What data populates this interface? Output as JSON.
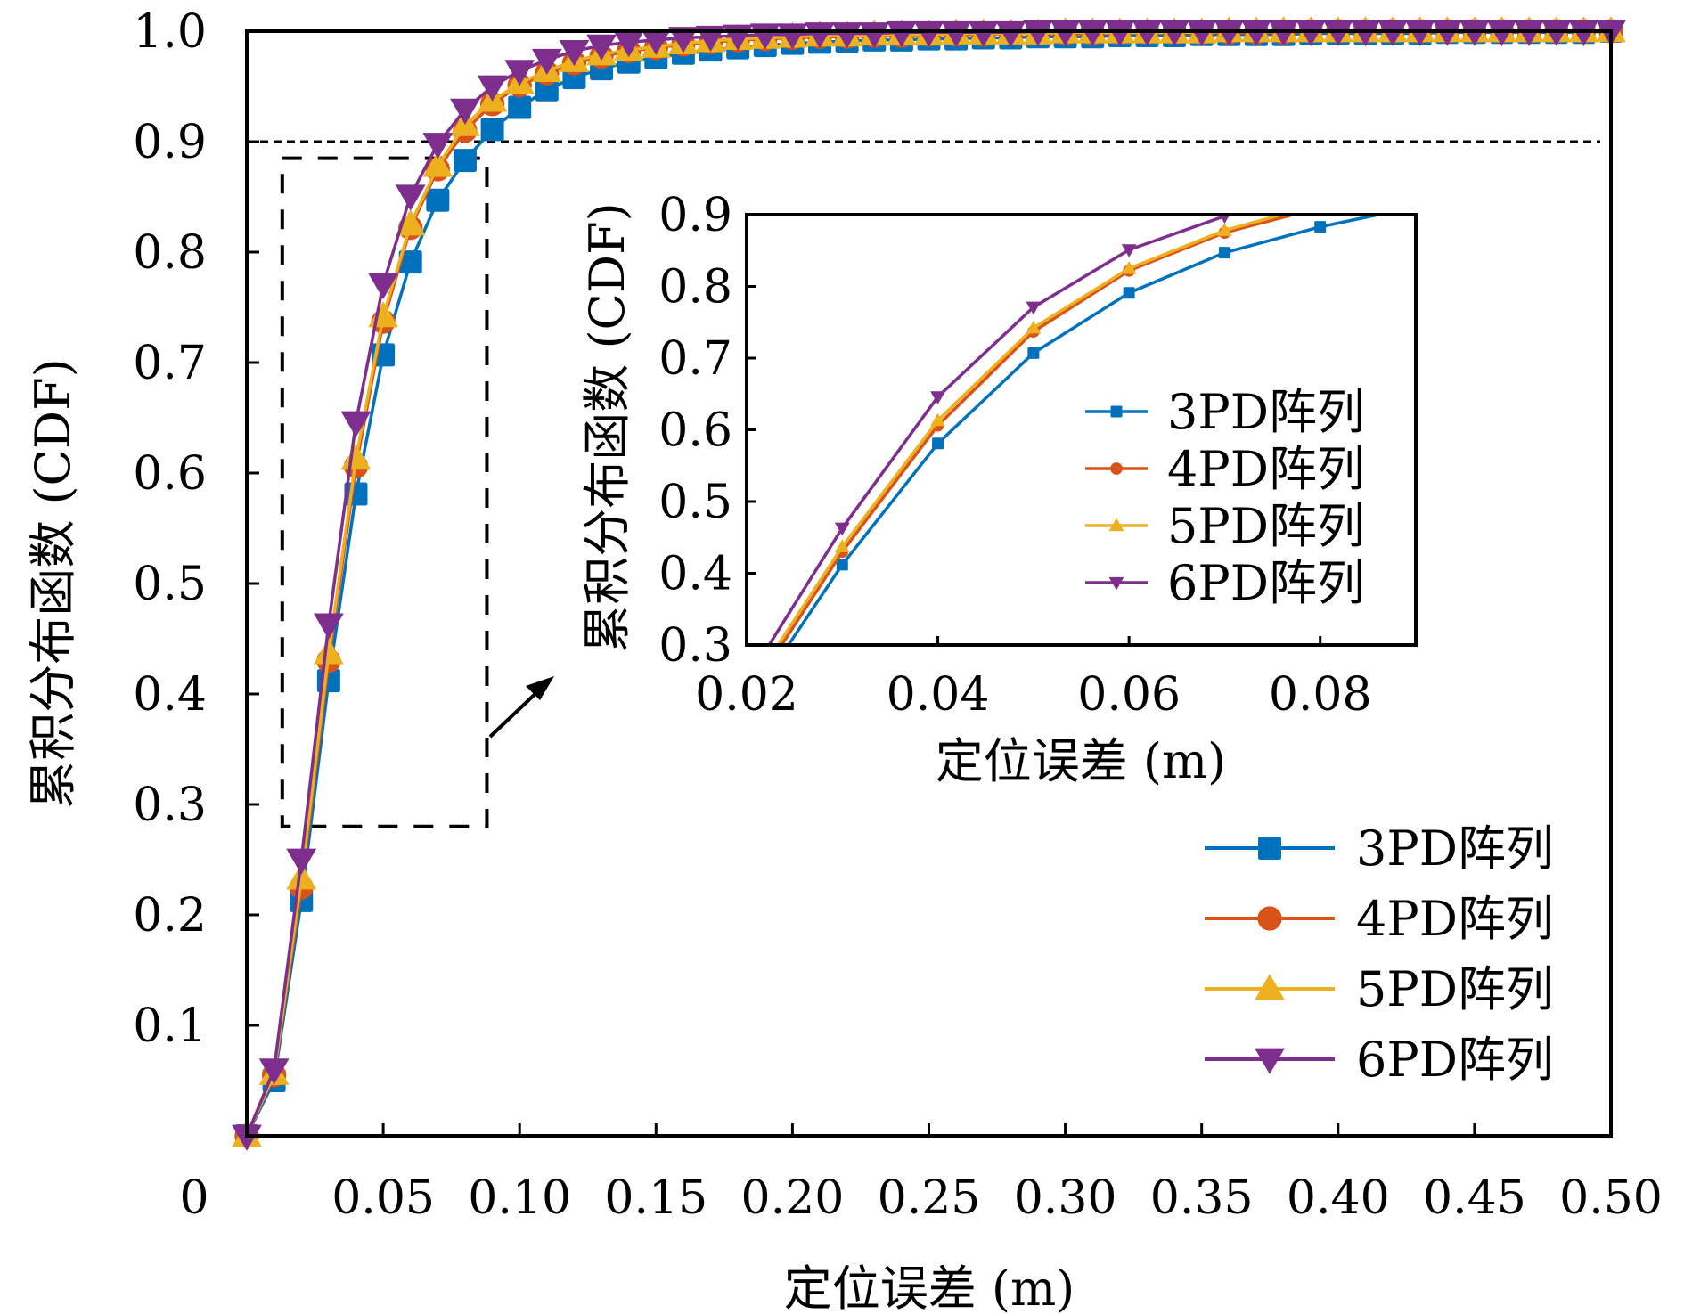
{
  "chart_data": {
    "type": "line",
    "title": "",
    "xlabel": "定位误差 (m)",
    "ylabel": "累积分布函数 (CDF)",
    "xlim": [
      0,
      0.5
    ],
    "ylim": [
      0,
      1.0
    ],
    "grid": false,
    "legend_position": "bottom-right",
    "x_ticks": [
      0,
      0.05,
      0.1,
      0.15,
      0.2,
      0.25,
      0.3,
      0.35,
      0.4,
      0.45,
      0.5
    ],
    "x_tick_labels": [
      "0",
      "0.05",
      "0.10",
      "0.15",
      "0.20",
      "0.25",
      "0.30",
      "0.35",
      "0.40",
      "0.45",
      "0.50"
    ],
    "y_ticks": [
      0.1,
      0.2,
      0.3,
      0.4,
      0.5,
      0.6,
      0.7,
      0.8,
      0.9,
      1.0
    ],
    "y_tick_labels": [
      "0.1",
      "0.2",
      "0.3",
      "0.4",
      "0.5",
      "0.6",
      "0.7",
      "0.8",
      "0.9",
      "1.0"
    ],
    "reference_line": {
      "y": 0.9,
      "style": "dashed"
    },
    "zoom_box": {
      "x_range": [
        0.013,
        0.088
      ],
      "y_range": [
        0.28,
        0.885
      ],
      "style": "dashed"
    },
    "x": [
      0,
      0.01,
      0.02,
      0.03,
      0.04,
      0.05,
      0.06,
      0.07,
      0.08,
      0.09,
      0.1,
      0.11,
      0.12,
      0.13,
      0.14,
      0.15,
      0.16,
      0.17,
      0.18,
      0.19,
      0.2,
      0.21,
      0.22,
      0.23,
      0.24,
      0.25,
      0.26,
      0.27,
      0.28,
      0.29,
      0.3,
      0.31,
      0.32,
      0.33,
      0.34,
      0.35,
      0.36,
      0.37,
      0.38,
      0.39,
      0.4,
      0.41,
      0.42,
      0.43,
      0.44,
      0.45,
      0.46,
      0.47,
      0.48,
      0.49,
      0.5
    ],
    "series": [
      {
        "name": "3PD阵列",
        "color": "#0072BD",
        "marker": "square",
        "values": [
          0,
          0.05,
          0.213,
          0.412,
          0.581,
          0.707,
          0.791,
          0.847,
          0.883,
          0.911,
          0.931,
          0.947,
          0.958,
          0.966,
          0.972,
          0.976,
          0.98,
          0.983,
          0.985,
          0.987,
          0.989,
          0.99,
          0.991,
          0.992,
          0.992,
          0.993,
          0.993,
          0.994,
          0.994,
          0.995,
          0.995,
          0.995,
          0.996,
          0.996,
          0.996,
          0.997,
          0.997,
          0.997,
          0.997,
          0.998,
          0.998,
          0.998,
          0.998,
          0.998,
          0.999,
          0.999,
          0.999,
          0.999,
          0.999,
          0.999,
          1.0
        ]
      },
      {
        "name": "4PD阵列",
        "color": "#D95319",
        "marker": "circle",
        "values": [
          0,
          0.055,
          0.225,
          0.43,
          0.606,
          0.737,
          0.822,
          0.875,
          0.91,
          0.934,
          0.951,
          0.962,
          0.971,
          0.977,
          0.982,
          0.985,
          0.988,
          0.99,
          0.992,
          0.993,
          0.994,
          0.995,
          0.995,
          0.996,
          0.996,
          0.997,
          0.997,
          0.997,
          0.998,
          0.998,
          0.998,
          0.998,
          0.999,
          0.999,
          0.999,
          0.999,
          0.999,
          0.999,
          0.999,
          1.0,
          1.0,
          1.0,
          1.0,
          1.0,
          1.0,
          1.0,
          1.0,
          1.0,
          1.0,
          1.0,
          1.0
        ]
      },
      {
        "name": "5PD阵列",
        "color": "#EDB120",
        "marker": "triangle-up",
        "values": [
          0,
          0.056,
          0.233,
          0.437,
          0.613,
          0.742,
          0.825,
          0.878,
          0.915,
          0.937,
          0.953,
          0.964,
          0.973,
          0.979,
          0.983,
          0.986,
          0.989,
          0.991,
          0.993,
          0.994,
          0.995,
          0.996,
          0.996,
          0.997,
          0.997,
          0.997,
          0.998,
          0.998,
          0.998,
          0.998,
          0.999,
          0.999,
          0.999,
          0.999,
          0.999,
          0.999,
          1.0,
          1.0,
          1.0,
          1.0,
          1.0,
          1.0,
          1.0,
          1.0,
          1.0,
          1.0,
          1.0,
          1.0,
          1.0,
          1.0,
          1.0
        ]
      },
      {
        "name": "6PD阵列",
        "color": "#7E2F8E",
        "marker": "triangle-down",
        "values": [
          0,
          0.06,
          0.25,
          0.463,
          0.646,
          0.771,
          0.851,
          0.898,
          0.929,
          0.95,
          0.964,
          0.974,
          0.982,
          0.987,
          0.99,
          0.992,
          0.994,
          0.995,
          0.996,
          0.997,
          0.997,
          0.998,
          0.998,
          0.998,
          0.999,
          0.999,
          0.999,
          0.999,
          0.999,
          1.0,
          1.0,
          1.0,
          1.0,
          1.0,
          1.0,
          1.0,
          1.0,
          1.0,
          1.0,
          1.0,
          1.0,
          1.0,
          1.0,
          1.0,
          1.0,
          1.0,
          1.0,
          1.0,
          1.0,
          1.0,
          1.0
        ]
      }
    ],
    "inset": {
      "xlabel": "定位误差 (m)",
      "ylabel": "累积分布函数 (CDF)",
      "xlim": [
        0.02,
        0.09
      ],
      "ylim": [
        0.3,
        0.9
      ],
      "x_ticks": [
        0.02,
        0.04,
        0.06,
        0.08
      ],
      "x_tick_labels": [
        "0.02",
        "0.04",
        "0.06",
        "0.08"
      ],
      "y_ticks": [
        0.3,
        0.4,
        0.5,
        0.6,
        0.7,
        0.8,
        0.9
      ],
      "y_tick_labels": [
        "0.3",
        "0.4",
        "0.5",
        "0.6",
        "0.7",
        "0.8",
        "0.9"
      ],
      "legend_position": "right",
      "legend": [
        "3PD阵列",
        "4PD阵列",
        "5PD阵列",
        "6PD阵列"
      ]
    },
    "legend": [
      "3PD阵列",
      "4PD阵列",
      "5PD阵列",
      "6PD阵列"
    ]
  }
}
